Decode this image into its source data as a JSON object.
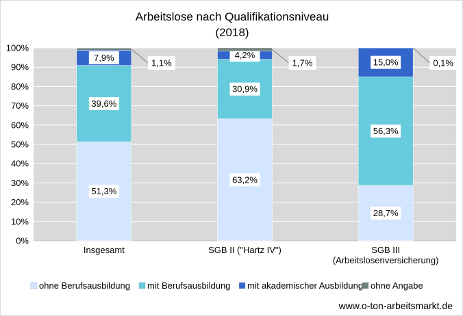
{
  "chart_data": {
    "type": "bar",
    "stacked": true,
    "percent_stacked": true,
    "title": "Arbeitslose nach Qualifikationsniveau",
    "subtitle": "(2018)",
    "categories": [
      [
        "Insgesamt"
      ],
      [
        "SGB II (\"Hartz IV\")"
      ],
      [
        "SGB III",
        "(Arbeitslosenversicherung)"
      ]
    ],
    "series": [
      {
        "name": "ohne Berufsausbildung",
        "color": "#d4e6ff",
        "values": [
          51.3,
          63.2,
          28.7
        ],
        "labels": [
          "51,3%",
          "63,2%",
          "28,7%"
        ]
      },
      {
        "name": "mit Berufsausbildung",
        "color": "#66ccdd",
        "values": [
          39.6,
          30.9,
          56.3
        ],
        "labels": [
          "39,6%",
          "30,9%",
          "56,3%"
        ]
      },
      {
        "name": "mit akademischer Ausbildung",
        "color": "#3366cc",
        "values": [
          7.9,
          4.2,
          15.0
        ],
        "labels": [
          "7,9%",
          "4,2%",
          "15,0%"
        ]
      },
      {
        "name": "ohne Angabe",
        "color": "#6f7f79",
        "values": [
          1.1,
          1.7,
          0.1
        ],
        "labels": [
          "1,1%",
          "1,7%",
          "0,1%"
        ]
      }
    ],
    "yticks": [
      "0%",
      "10%",
      "20%",
      "30%",
      "40%",
      "50%",
      "60%",
      "70%",
      "80%",
      "90%",
      "100%"
    ],
    "ylim": [
      0,
      100
    ],
    "grid": true,
    "legend": "bottom",
    "background": "#d9d9d9"
  },
  "source": "www.o-ton-arbeitsmarkt.de"
}
